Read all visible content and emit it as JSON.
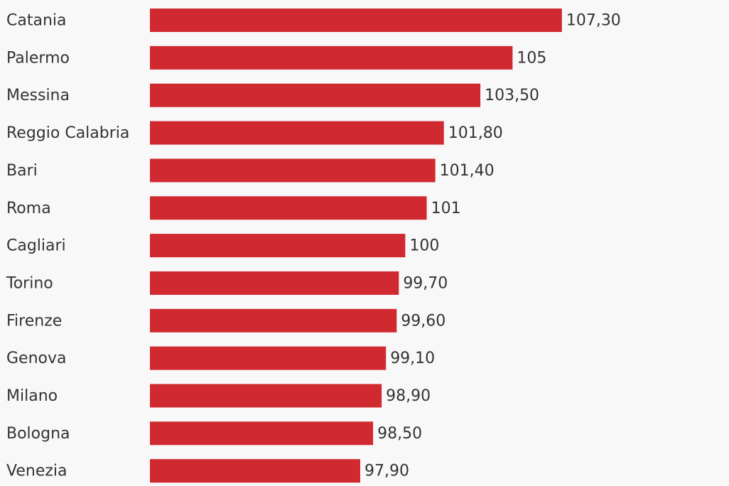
{
  "chart_data": {
    "type": "bar",
    "orientation": "horizontal",
    "categories": [
      "Catania",
      "Palermo",
      "Messina",
      "Reggio Calabria",
      "Bari",
      "Roma",
      "Cagliari",
      "Torino",
      "Firenze",
      "Genova",
      "Milano",
      "Bologna",
      "Venezia"
    ],
    "values": [
      107.3,
      105,
      103.5,
      101.8,
      101.4,
      101,
      100,
      99.7,
      99.6,
      99.1,
      98.9,
      98.5,
      97.9
    ],
    "value_labels": [
      "107,30",
      "105",
      "103,50",
      "101,80",
      "101,40",
      "101",
      "100",
      "99,70",
      "99,60",
      "99,10",
      "98,90",
      "98,50",
      "97,90"
    ],
    "title": "",
    "xlabel": "",
    "ylabel": "",
    "bar_color": "#d0292f",
    "grid": false,
    "legend": "none"
  }
}
